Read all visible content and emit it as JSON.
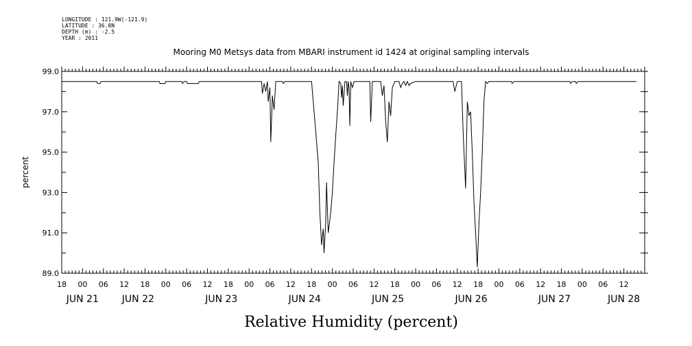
{
  "meta": {
    "longitude": "LONGITUDE : 121.9W(-121.9)",
    "latitude": "LATITUDE : 36.8N",
    "depth": "DEPTH (m) : -2.5",
    "year": "YEAR : 2011"
  },
  "chart_data": {
    "type": "line",
    "title": "Mooring M0 Metsys data from MBARI instrument id 1424 at original sampling intervals",
    "xlabel": "Relative Humidity (percent)",
    "ylabel": "percent",
    "ylim": [
      89.0,
      99.0
    ],
    "xlim": [
      -0.25,
      6.75
    ],
    "y_ticks": [
      "89.0",
      "91.0",
      "93.0",
      "95.0",
      "97.0",
      "99.0"
    ],
    "x_hour_ticks": [
      "18",
      "00",
      "06",
      "12",
      "18",
      "00",
      "06",
      "12",
      "18",
      "00",
      "06",
      "12",
      "18",
      "00",
      "06",
      "12",
      "18",
      "00",
      "06",
      "12",
      "18",
      "00",
      "06",
      "12",
      "18",
      "00",
      "06",
      "12"
    ],
    "x_day_labels": [
      "JUN 21",
      "JUN 22",
      "JUN 23",
      "JUN 24",
      "JUN 25",
      "JUN 26",
      "JUN 27",
      "JUN 28"
    ],
    "x_day_label_positions": [
      0,
      0.667,
      1.667,
      2.667,
      3.667,
      4.667,
      5.667,
      6.5
    ],
    "grid": false,
    "line_color": "#000000",
    "series": [
      {
        "x_units": "days since JUN 21 00:00",
        "points": [
          [
            -0.25,
            98.5
          ],
          [
            0.17,
            98.5
          ],
          [
            0.18,
            98.4
          ],
          [
            0.21,
            98.4
          ],
          [
            0.22,
            98.5
          ],
          [
            0.92,
            98.5
          ],
          [
            0.93,
            98.4
          ],
          [
            0.99,
            98.4
          ],
          [
            1.0,
            98.5
          ],
          [
            1.19,
            98.5
          ],
          [
            1.2,
            98.4
          ],
          [
            1.22,
            98.5
          ],
          [
            1.25,
            98.5
          ],
          [
            1.26,
            98.4
          ],
          [
            1.39,
            98.4
          ],
          [
            1.4,
            98.5
          ],
          [
            2.1,
            98.5
          ],
          [
            2.15,
            98.5
          ],
          [
            2.16,
            97.9
          ],
          [
            2.18,
            98.4
          ],
          [
            2.2,
            98.0
          ],
          [
            2.22,
            98.5
          ],
          [
            2.23,
            97.5
          ],
          [
            2.25,
            98.2
          ],
          [
            2.26,
            95.5
          ],
          [
            2.28,
            97.8
          ],
          [
            2.3,
            97.1
          ],
          [
            2.32,
            98.5
          ],
          [
            2.33,
            98.5
          ],
          [
            2.4,
            98.5
          ],
          [
            2.41,
            98.4
          ],
          [
            2.43,
            98.5
          ],
          [
            2.75,
            98.5
          ],
          [
            2.8,
            96.0
          ],
          [
            2.83,
            94.5
          ],
          [
            2.85,
            92.0
          ],
          [
            2.87,
            90.4
          ],
          [
            2.89,
            91.2
          ],
          [
            2.9,
            90.0
          ],
          [
            2.92,
            91.5
          ],
          [
            2.93,
            93.5
          ],
          [
            2.95,
            91.0
          ],
          [
            2.98,
            92.0
          ],
          [
            3.0,
            93.0
          ],
          [
            3.02,
            94.5
          ],
          [
            3.04,
            95.8
          ],
          [
            3.06,
            97.0
          ],
          [
            3.08,
            98.5
          ],
          [
            3.1,
            98.4
          ],
          [
            3.11,
            97.7
          ],
          [
            3.12,
            98.3
          ],
          [
            3.13,
            97.3
          ],
          [
            3.15,
            98.5
          ],
          [
            3.17,
            98.5
          ],
          [
            3.18,
            97.8
          ],
          [
            3.19,
            98.5
          ],
          [
            3.2,
            98.2
          ],
          [
            3.21,
            96.3
          ],
          [
            3.22,
            98.5
          ],
          [
            3.24,
            98.2
          ],
          [
            3.26,
            98.5
          ],
          [
            3.4,
            98.5
          ],
          [
            3.45,
            98.5
          ],
          [
            3.46,
            96.5
          ],
          [
            3.48,
            98.5
          ],
          [
            3.55,
            98.5
          ],
          [
            3.58,
            98.5
          ],
          [
            3.6,
            97.8
          ],
          [
            3.62,
            98.3
          ],
          [
            3.64,
            96.5
          ],
          [
            3.66,
            95.5
          ],
          [
            3.68,
            97.5
          ],
          [
            3.7,
            96.8
          ],
          [
            3.72,
            98.2
          ],
          [
            3.75,
            98.5
          ],
          [
            3.8,
            98.5
          ],
          [
            3.82,
            98.2
          ],
          [
            3.84,
            98.4
          ],
          [
            3.86,
            98.5
          ],
          [
            3.88,
            98.3
          ],
          [
            3.9,
            98.5
          ],
          [
            3.92,
            98.3
          ],
          [
            3.94,
            98.4
          ],
          [
            4.0,
            98.5
          ],
          [
            4.45,
            98.5
          ],
          [
            4.47,
            98.0
          ],
          [
            4.5,
            98.5
          ],
          [
            4.55,
            98.5
          ],
          [
            4.57,
            96.0
          ],
          [
            4.6,
            93.2
          ],
          [
            4.62,
            97.5
          ],
          [
            4.64,
            96.8
          ],
          [
            4.66,
            97.0
          ],
          [
            4.68,
            95.0
          ],
          [
            4.7,
            92.5
          ],
          [
            4.72,
            91.0
          ],
          [
            4.74,
            89.3
          ],
          [
            4.76,
            91.5
          ],
          [
            4.78,
            93.0
          ],
          [
            4.8,
            95.0
          ],
          [
            4.82,
            97.5
          ],
          [
            4.84,
            98.5
          ],
          [
            4.86,
            98.4
          ],
          [
            4.88,
            98.5
          ],
          [
            5.15,
            98.5
          ],
          [
            5.16,
            98.4
          ],
          [
            5.18,
            98.5
          ],
          [
            5.85,
            98.5
          ],
          [
            5.86,
            98.4
          ],
          [
            5.88,
            98.5
          ],
          [
            5.92,
            98.5
          ],
          [
            5.93,
            98.4
          ],
          [
            5.95,
            98.5
          ],
          [
            6.65,
            98.5
          ]
        ]
      }
    ]
  }
}
